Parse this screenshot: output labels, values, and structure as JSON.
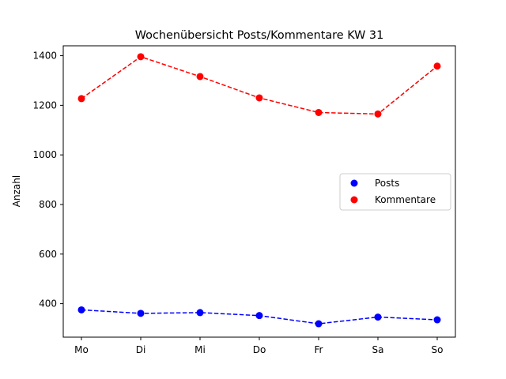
{
  "chart_data": {
    "type": "line",
    "title": "Wochenübersicht Posts/Kommentare KW 31",
    "xlabel": "",
    "ylabel": "Anzahl",
    "categories": [
      "Mo",
      "Di",
      "Mi",
      "Do",
      "Fr",
      "Sa",
      "So"
    ],
    "series": [
      {
        "name": "Posts",
        "color": "#0000ff",
        "line_style": "dashed",
        "marker": "circle",
        "values": [
          375,
          361,
          364,
          352,
          319,
          346,
          335
        ]
      },
      {
        "name": "Kommentare",
        "color": "#ff0000",
        "line_style": "dashed",
        "marker": "circle",
        "values": [
          1227,
          1396,
          1316,
          1230,
          1171,
          1165,
          1358
        ]
      }
    ],
    "ylim": [
      265,
      1440
    ],
    "yticks": [
      400,
      600,
      800,
      1000,
      1200,
      1400
    ],
    "grid": false,
    "legend_position": "center-right"
  }
}
